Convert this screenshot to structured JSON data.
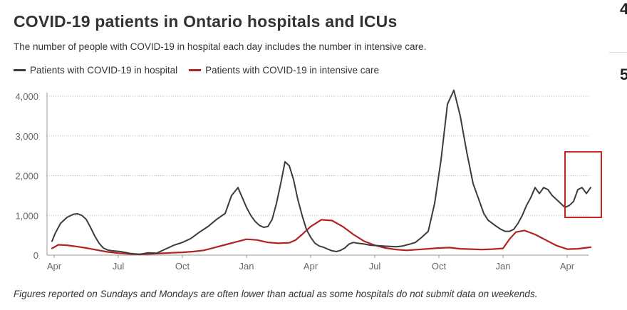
{
  "header": {
    "title": "COVID-19 patients in Ontario hospitals and ICUs",
    "subtitle": "The number of people with COVID-19 in hospital each day includes the number in intensive care."
  },
  "legend": {
    "items": [
      {
        "label": "Patients with COVID-19 in hospital",
        "color": "#3c3c3c"
      },
      {
        "label": "Patients with COVID-19 in intensive care",
        "color": "#b22222"
      }
    ]
  },
  "footnote": "Figures reported on Sundays and Mondays are often lower than actual as some hospitals do not submit data on weekends.",
  "side_fragments": [
    "4",
    "5"
  ],
  "highlight_box_color": "#cc2222",
  "chart_data": {
    "type": "line",
    "title": "COVID-19 patients in Ontario hospitals and ICUs",
    "xlabel": "",
    "ylabel": "",
    "ylim": [
      0,
      4000
    ],
    "yticks": [
      0,
      1000,
      2000,
      3000,
      4000
    ],
    "ytick_labels": [
      "0",
      "1,000",
      "2,000",
      "3,000",
      "4,000"
    ],
    "x_unit": "months since first Apr tick",
    "xlim": [
      0,
      25
    ],
    "xticks": [
      0,
      3,
      6,
      9,
      12,
      15,
      18,
      21,
      24
    ],
    "xtick_labels": [
      "Apr",
      "Jul",
      "Oct",
      "Jan",
      "Apr",
      "Jul",
      "Oct",
      "Jan",
      "Apr"
    ],
    "grid": "horizontal dotted",
    "legend_position": "top-left",
    "highlight_region": {
      "x": [
        23.9,
        25.6
      ],
      "y": [
        950,
        2600
      ]
    },
    "series": [
      {
        "name": "Patients with COVID-19 in hospital",
        "color": "#3c3c3c",
        "x": [
          -0.1,
          0.05,
          0.3,
          0.6,
          0.9,
          1.1,
          1.3,
          1.5,
          1.7,
          1.9,
          2.1,
          2.3,
          2.5,
          2.7,
          2.9,
          3.1,
          3.3,
          3.6,
          4.0,
          4.4,
          4.8,
          5.2,
          5.6,
          6.0,
          6.4,
          6.8,
          7.2,
          7.6,
          8.0,
          8.3,
          8.6,
          8.8,
          9.0,
          9.2,
          9.4,
          9.6,
          9.8,
          10.0,
          10.2,
          10.4,
          10.6,
          10.8,
          11.0,
          11.2,
          11.4,
          11.6,
          11.8,
          12.0,
          12.2,
          12.4,
          12.6,
          12.8,
          13.0,
          13.2,
          13.4,
          13.6,
          13.8,
          14.0,
          14.2,
          14.5,
          14.8,
          15.1,
          15.4,
          15.7,
          16.0,
          16.3,
          16.6,
          16.9,
          17.2,
          17.5,
          17.8,
          18.1,
          18.4,
          18.7,
          19.0,
          19.3,
          19.6,
          19.9,
          20.1,
          20.3,
          20.5,
          20.7,
          20.9,
          21.1,
          21.3,
          21.5,
          21.7,
          21.9,
          22.1,
          22.3,
          22.5,
          22.7,
          22.9,
          23.1,
          23.3,
          23.5,
          23.7,
          23.9,
          24.1,
          24.3,
          24.5,
          24.7,
          24.9,
          25.1
        ],
        "y": [
          350,
          550,
          800,
          950,
          1030,
          1040,
          1000,
          900,
          700,
          480,
          300,
          180,
          130,
          110,
          100,
          90,
          70,
          40,
          20,
          60,
          50,
          150,
          250,
          320,
          420,
          580,
          720,
          900,
          1050,
          1500,
          1700,
          1450,
          1200,
          1000,
          850,
          750,
          700,
          720,
          900,
          1300,
          1800,
          2350,
          2250,
          1900,
          1400,
          1000,
          650,
          450,
          300,
          230,
          200,
          150,
          110,
          90,
          120,
          180,
          280,
          320,
          300,
          280,
          250,
          240,
          230,
          220,
          210,
          230,
          270,
          320,
          450,
          600,
          1300,
          2400,
          3800,
          4150,
          3500,
          2600,
          1800,
          1350,
          1050,
          880,
          800,
          720,
          650,
          600,
          600,
          650,
          800,
          1000,
          1250,
          1450,
          1700,
          1550,
          1700,
          1650,
          1500,
          1400,
          1300,
          1200,
          1250,
          1350,
          1650,
          1700,
          1550,
          1700
        ],
        "note": "approximate daily hospital census; x in months from the first Apr tick"
      },
      {
        "name": "Patients with COVID-19 in intensive care",
        "color": "#b22222",
        "x": [
          -0.1,
          0.2,
          0.6,
          1.0,
          1.5,
          2.0,
          2.5,
          3.0,
          3.5,
          4.0,
          4.5,
          5.0,
          5.5,
          6.0,
          6.5,
          7.0,
          7.5,
          8.0,
          8.5,
          9.0,
          9.5,
          10.0,
          10.5,
          11.0,
          11.3,
          11.6,
          12.0,
          12.5,
          13.0,
          13.5,
          14.0,
          14.5,
          15.0,
          15.5,
          16.0,
          16.5,
          17.0,
          17.5,
          18.0,
          18.5,
          19.0,
          19.5,
          20.0,
          20.5,
          21.0,
          21.3,
          21.6,
          22.0,
          22.5,
          23.0,
          23.5,
          24.0,
          24.5,
          24.8,
          25.1
        ],
        "y": [
          170,
          260,
          250,
          220,
          180,
          130,
          80,
          50,
          30,
          20,
          30,
          45,
          60,
          70,
          90,
          120,
          190,
          260,
          330,
          400,
          380,
          320,
          300,
          310,
          380,
          520,
          720,
          890,
          870,
          720,
          520,
          350,
          250,
          180,
          140,
          120,
          140,
          160,
          180,
          190,
          160,
          150,
          140,
          150,
          170,
          400,
          580,
          620,
          520,
          380,
          240,
          150,
          160,
          180,
          200
        ],
        "note": "approximate daily ICU census"
      }
    ]
  }
}
